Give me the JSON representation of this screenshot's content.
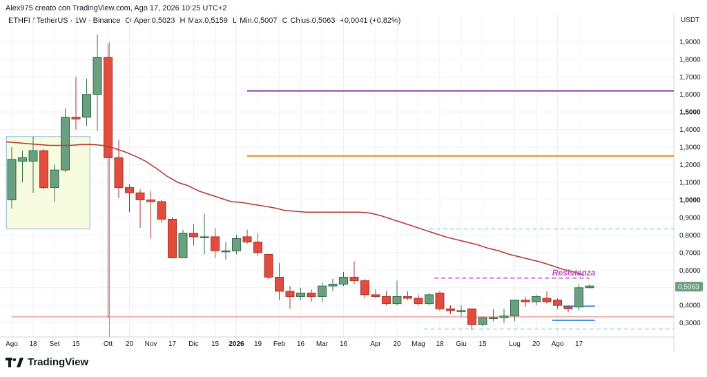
{
  "header": {
    "credit": "Alex975 creato con TradingView.com, Ago 17, 2026 10:25 UTC+2"
  },
  "symbol_bar": {
    "symbol": "ETHFI / TetherUS · 1W · Binance",
    "open_label": "O",
    "open": "Aper.0,5023",
    "high_label": "H",
    "high": "Max.0,5159",
    "low_label": "L",
    "low": "Min.0,5007",
    "close_label": "C",
    "close": "Chius.0,5063",
    "change": "+0,0041 (+0,82%)"
  },
  "logo": {
    "text": "TradingView",
    "icon": "tradingview-logo-icon"
  },
  "colors": {
    "up": "#6a9f7f",
    "up_border": "#2f6b4a",
    "down": "#e24c3f",
    "down_border": "#a8322a",
    "ma": "#b73a35",
    "purple_line": "#8e3b9c",
    "orange_line": "#f08a24",
    "price_tag": "#6a9f7f",
    "grid": "#eef0f3",
    "zone_fill": "#f7fbdf",
    "zone_border": "#8cb4e0"
  },
  "chart_data": {
    "type": "candlestick",
    "currency": "USDT",
    "ylim": [
      0.22,
      1.98
    ],
    "y_ticks": [
      "1,9000",
      "1,8000",
      "1,7000",
      "1,6000",
      "1,5000",
      "1,4000",
      "1,3000",
      "1,2000",
      "1,1000",
      "1,0000",
      "0,9000",
      "0,8000",
      "0,7000",
      "0,6000",
      "0,5000",
      "0,4000",
      "0,3000"
    ],
    "y_tick_values": [
      1.9,
      1.8,
      1.7,
      1.6,
      1.5,
      1.4,
      1.3,
      1.2,
      1.1,
      1.0,
      0.9,
      0.8,
      0.7,
      0.6,
      0.5,
      0.4,
      0.3
    ],
    "bold_ticks": [
      1.5,
      1.0
    ],
    "x_labels": [
      {
        "label": "Ago",
        "i": 0
      },
      {
        "label": "18",
        "i": 2
      },
      {
        "label": "Set",
        "i": 4
      },
      {
        "label": "15",
        "i": 6
      },
      {
        "label": "Ott",
        "i": 9
      },
      {
        "label": "20",
        "i": 11
      },
      {
        "label": "Nov",
        "i": 13
      },
      {
        "label": "17",
        "i": 15
      },
      {
        "label": "Dic",
        "i": 17
      },
      {
        "label": "15",
        "i": 19
      },
      {
        "label": "2026",
        "i": 21,
        "bold": true
      },
      {
        "label": "19",
        "i": 23
      },
      {
        "label": "Feb",
        "i": 25
      },
      {
        "label": "16",
        "i": 27
      },
      {
        "label": "Mar",
        "i": 29
      },
      {
        "label": "16",
        "i": 31
      },
      {
        "label": "Apr",
        "i": 34
      },
      {
        "label": "20",
        "i": 36
      },
      {
        "label": "Mag",
        "i": 38
      },
      {
        "label": "18",
        "i": 40
      },
      {
        "label": "Giu",
        "i": 42
      },
      {
        "label": "15",
        "i": 44
      },
      {
        "label": "Lug",
        "i": 47
      },
      {
        "label": "20",
        "i": 49
      },
      {
        "label": "Ago",
        "i": 51
      },
      {
        "label": "17",
        "i": 53
      }
    ],
    "candles": [
      {
        "o": 1.0,
        "h": 1.3,
        "l": 0.95,
        "c": 1.23
      },
      {
        "o": 1.22,
        "h": 1.28,
        "l": 1.1,
        "c": 1.24
      },
      {
        "o": 1.22,
        "h": 1.36,
        "l": 1.04,
        "c": 1.28
      },
      {
        "o": 1.28,
        "h": 1.29,
        "l": 1.06,
        "c": 1.07
      },
      {
        "o": 1.07,
        "h": 1.2,
        "l": 0.99,
        "c": 1.17
      },
      {
        "o": 1.17,
        "h": 1.52,
        "l": 1.16,
        "c": 1.47
      },
      {
        "o": 1.47,
        "h": 1.7,
        "l": 1.4,
        "c": 1.46
      },
      {
        "o": 1.47,
        "h": 1.69,
        "l": 1.42,
        "c": 1.6
      },
      {
        "o": 1.6,
        "h": 1.94,
        "l": 1.39,
        "c": 1.81
      },
      {
        "o": 1.81,
        "h": 1.89,
        "l": 0.33,
        "c": 1.24
      },
      {
        "o": 1.24,
        "h": 1.34,
        "l": 1.01,
        "c": 1.07
      },
      {
        "o": 1.07,
        "h": 1.09,
        "l": 0.93,
        "c": 1.04
      },
      {
        "o": 1.04,
        "h": 1.06,
        "l": 0.84,
        "c": 1.0
      },
      {
        "o": 1.0,
        "h": 1.05,
        "l": 0.78,
        "c": 0.99
      },
      {
        "o": 0.99,
        "h": 1.0,
        "l": 0.87,
        "c": 0.89
      },
      {
        "o": 0.89,
        "h": 0.9,
        "l": 0.67,
        "c": 0.67
      },
      {
        "o": 0.67,
        "h": 0.83,
        "l": 0.67,
        "c": 0.81
      },
      {
        "o": 0.81,
        "h": 0.86,
        "l": 0.74,
        "c": 0.79
      },
      {
        "o": 0.79,
        "h": 0.92,
        "l": 0.69,
        "c": 0.79
      },
      {
        "o": 0.79,
        "h": 0.84,
        "l": 0.67,
        "c": 0.71
      },
      {
        "o": 0.71,
        "h": 0.76,
        "l": 0.66,
        "c": 0.71
      },
      {
        "o": 0.71,
        "h": 0.8,
        "l": 0.69,
        "c": 0.78
      },
      {
        "o": 0.79,
        "h": 0.83,
        "l": 0.75,
        "c": 0.76
      },
      {
        "o": 0.76,
        "h": 0.81,
        "l": 0.68,
        "c": 0.7
      },
      {
        "o": 0.69,
        "h": 0.69,
        "l": 0.55,
        "c": 0.56
      },
      {
        "o": 0.56,
        "h": 0.64,
        "l": 0.43,
        "c": 0.48
      },
      {
        "o": 0.48,
        "h": 0.51,
        "l": 0.38,
        "c": 0.45
      },
      {
        "o": 0.45,
        "h": 0.5,
        "l": 0.43,
        "c": 0.47
      },
      {
        "o": 0.47,
        "h": 0.49,
        "l": 0.42,
        "c": 0.45
      },
      {
        "o": 0.45,
        "h": 0.53,
        "l": 0.42,
        "c": 0.51
      },
      {
        "o": 0.51,
        "h": 0.55,
        "l": 0.48,
        "c": 0.52
      },
      {
        "o": 0.52,
        "h": 0.59,
        "l": 0.51,
        "c": 0.56
      },
      {
        "o": 0.56,
        "h": 0.65,
        "l": 0.52,
        "c": 0.54
      },
      {
        "o": 0.54,
        "h": 0.55,
        "l": 0.44,
        "c": 0.46
      },
      {
        "o": 0.46,
        "h": 0.49,
        "l": 0.44,
        "c": 0.45
      },
      {
        "o": 0.45,
        "h": 0.48,
        "l": 0.4,
        "c": 0.41
      },
      {
        "o": 0.41,
        "h": 0.54,
        "l": 0.4,
        "c": 0.45
      },
      {
        "o": 0.45,
        "h": 0.48,
        "l": 0.43,
        "c": 0.44
      },
      {
        "o": 0.44,
        "h": 0.46,
        "l": 0.4,
        "c": 0.41
      },
      {
        "o": 0.41,
        "h": 0.47,
        "l": 0.4,
        "c": 0.46
      },
      {
        "o": 0.47,
        "h": 0.48,
        "l": 0.37,
        "c": 0.38
      },
      {
        "o": 0.38,
        "h": 0.4,
        "l": 0.35,
        "c": 0.37
      },
      {
        "o": 0.37,
        "h": 0.4,
        "l": 0.34,
        "c": 0.37
      },
      {
        "o": 0.38,
        "h": 0.38,
        "l": 0.26,
        "c": 0.29
      },
      {
        "o": 0.29,
        "h": 0.33,
        "l": 0.28,
        "c": 0.33
      },
      {
        "o": 0.33,
        "h": 0.38,
        "l": 0.31,
        "c": 0.33
      },
      {
        "o": 0.33,
        "h": 0.38,
        "l": 0.3,
        "c": 0.34
      },
      {
        "o": 0.34,
        "h": 0.43,
        "l": 0.31,
        "c": 0.43
      },
      {
        "o": 0.43,
        "h": 0.45,
        "l": 0.39,
        "c": 0.42
      },
      {
        "o": 0.42,
        "h": 0.46,
        "l": 0.4,
        "c": 0.45
      },
      {
        "o": 0.44,
        "h": 0.48,
        "l": 0.41,
        "c": 0.42
      },
      {
        "o": 0.43,
        "h": 0.44,
        "l": 0.38,
        "c": 0.4
      },
      {
        "o": 0.39,
        "h": 0.4,
        "l": 0.36,
        "c": 0.38
      },
      {
        "o": 0.39,
        "h": 0.52,
        "l": 0.37,
        "c": 0.5
      },
      {
        "o": 0.5,
        "h": 0.52,
        "l": 0.5,
        "c": 0.51
      }
    ],
    "moving_average": [
      1.33,
      1.325,
      1.32,
      1.315,
      1.31,
      1.31,
      1.31,
      1.315,
      1.315,
      1.31,
      1.295,
      1.275,
      1.25,
      1.22,
      1.18,
      1.135,
      1.1,
      1.08,
      1.05,
      1.03,
      1.01,
      0.99,
      0.985,
      0.975,
      0.965,
      0.955,
      0.94,
      0.935,
      0.93,
      0.93,
      0.93,
      0.93,
      0.93,
      0.93,
      0.925,
      0.91,
      0.89,
      0.87,
      0.85,
      0.83,
      0.81,
      0.79,
      0.775,
      0.76,
      0.745,
      0.725,
      0.71,
      0.69,
      0.675,
      0.66,
      0.645,
      0.625,
      0.605,
      0.59,
      0.57
    ],
    "horizontal_lines": [
      {
        "name": "purple-line",
        "price": 1.62,
        "from_i": 22,
        "color": "#8e3b9c",
        "style": "solid"
      },
      {
        "name": "orange-line",
        "price": 1.25,
        "from_i": 22,
        "color": "#f08a24",
        "style": "solid"
      },
      {
        "name": "resistance-line",
        "price": 0.555,
        "from_i": 39.5,
        "to_i": 54,
        "color": "#c245c9",
        "style": "dashed"
      },
      {
        "name": "support-line-top",
        "price": 0.835,
        "from_i": 39,
        "color": "#9fd8cf",
        "style": "dashed"
      },
      {
        "name": "support-line-blue",
        "price": 0.395,
        "from_i": 51.5,
        "to_i": 54.5,
        "color": "#3b86d8",
        "style": "solid"
      },
      {
        "name": "support-line-blue-2",
        "price": 0.315,
        "from_i": 50.5,
        "to_i": 54.5,
        "color": "#3b86d8",
        "style": "solid"
      },
      {
        "name": "bottom-dashed-line",
        "price": 0.265,
        "from_i": 38.5,
        "color": "#9fd8cf",
        "style": "dashed"
      },
      {
        "name": "red-level-line",
        "price": 0.335,
        "from_i": 0,
        "color": "#f3b0ac",
        "style": "solid"
      }
    ],
    "zone": {
      "from_i": -0.5,
      "to_i": 7.3,
      "top": 1.36,
      "bottom": 0.835
    },
    "annotation": {
      "text": "Resistenza",
      "i": 50.5,
      "price": 0.57,
      "color": "#c245c9"
    },
    "last_price": {
      "label": "0,5063",
      "value": 0.5063
    },
    "vertical_line_i": 9.5
  }
}
